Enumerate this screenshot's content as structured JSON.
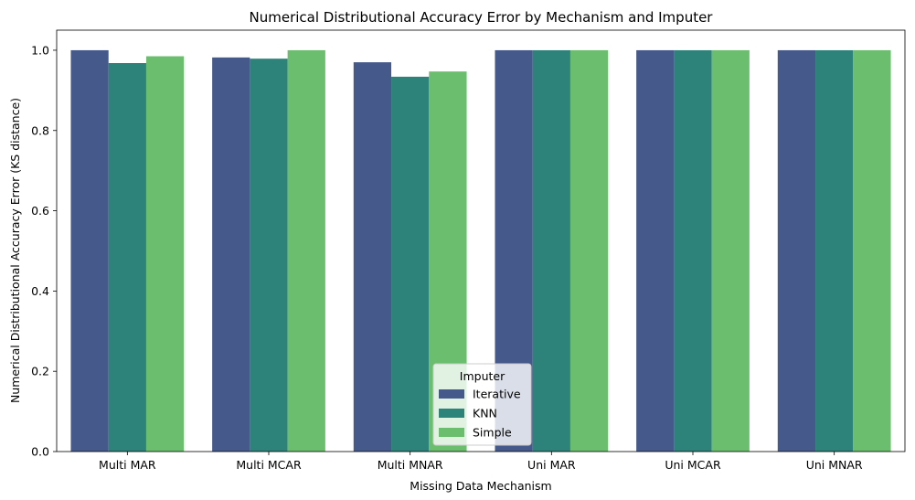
{
  "chart_data": {
    "type": "bar",
    "title": "Numerical Distributional Accuracy Error by Mechanism and Imputer",
    "xlabel": "Missing Data Mechanism",
    "ylabel": "Numerical Distributional Accuracy Error (KS distance)",
    "ylim": [
      0,
      1.05
    ],
    "yticks": [
      "0.0",
      "0.2",
      "0.4",
      "0.6",
      "0.8",
      "1.0"
    ],
    "categories": [
      "Multi MAR",
      "Multi MCAR",
      "Multi MNAR",
      "Uni MAR",
      "Uni MCAR",
      "Uni MNAR"
    ],
    "series": [
      {
        "name": "Iterative",
        "color": "#45598a",
        "values": [
          1.0,
          0.982,
          0.97,
          1.0,
          1.0,
          1.0
        ]
      },
      {
        "name": "KNN",
        "color": "#2d827a",
        "values": [
          0.968,
          0.979,
          0.934,
          1.0,
          1.0,
          1.0
        ]
      },
      {
        "name": "Simple",
        "color": "#6abe6d",
        "values": [
          0.985,
          1.0,
          0.947,
          1.0,
          1.0,
          1.0
        ]
      }
    ],
    "legend": {
      "title": "Imputer",
      "position": "bottom-center"
    },
    "grid": false
  }
}
